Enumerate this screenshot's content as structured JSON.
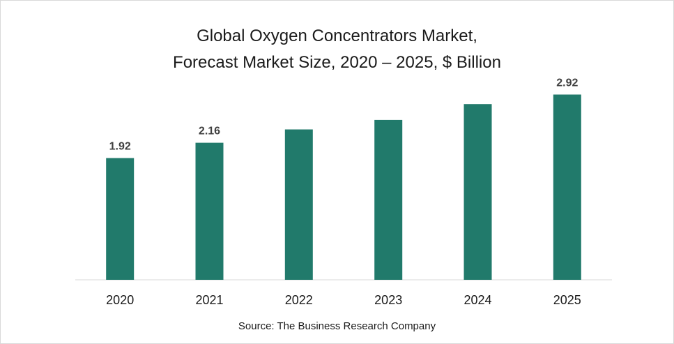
{
  "chart_data": {
    "type": "bar",
    "title_lines": [
      "Global Oxygen Concentrators Market,",
      "Forecast Market Size, 2020 – 2025, $ Billion"
    ],
    "categories": [
      "2020",
      "2021",
      "2022",
      "2023",
      "2024",
      "2025"
    ],
    "values": [
      1.92,
      2.16,
      2.37,
      2.52,
      2.77,
      2.92
    ],
    "data_labels": [
      "1.92",
      "2.16",
      "",
      "",
      "",
      "2.92"
    ],
    "ylim": [
      0,
      3.3
    ],
    "grid": false,
    "legend": "none",
    "bar_color": "#217a6b",
    "source": "Source: The Business Research Company"
  }
}
